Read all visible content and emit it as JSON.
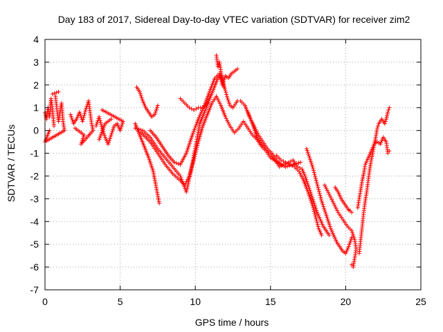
{
  "chart_data": {
    "type": "scatter",
    "title": "Day 183 of 2017, Sidereal Day-to-day VTEC variation (SDTVAR) for receiver zim2",
    "xlabel": "GPS time / hours",
    "ylabel": "SDTVAR / TECUs",
    "xlim": [
      0,
      25
    ],
    "ylim": [
      -7,
      4
    ],
    "x_ticks": [
      0,
      5,
      10,
      15,
      20,
      25
    ],
    "y_ticks": [
      -7,
      -6,
      -5,
      -4,
      -3,
      -2,
      -1,
      0,
      1,
      2,
      3,
      4
    ],
    "grid": true,
    "marker": "+",
    "color": "#ff0000",
    "series": [
      {
        "values": [
          [
            0.0,
            0.8
          ],
          [
            0.1,
            0.5
          ],
          [
            0.2,
            1.0
          ],
          [
            0.3,
            0.6
          ],
          [
            0.4,
            1.4
          ],
          [
            0.5,
            0.9
          ],
          [
            0.6,
            0.2
          ],
          [
            0.7,
            1.5
          ],
          [
            0.8,
            0.9
          ],
          [
            0.9,
            0.4
          ],
          [
            1.0,
            0.8
          ],
          [
            1.1,
            1.2
          ],
          [
            1.2,
            0.4
          ],
          [
            1.3,
            0.0
          ],
          [
            0.0,
            -0.5
          ],
          [
            0.3,
            0.0
          ],
          [
            0.5,
            1.6
          ],
          [
            0.9,
            1.7
          ]
        ]
      },
      {
        "values": [
          [
            1.7,
            0.7
          ],
          [
            1.9,
            0.3
          ],
          [
            2.1,
            0.5
          ],
          [
            2.3,
            0.8
          ],
          [
            2.5,
            0.4
          ],
          [
            2.7,
            0.9
          ],
          [
            2.9,
            1.3
          ],
          [
            3.0,
            0.8
          ],
          [
            3.1,
            0.3
          ],
          [
            3.2,
            0.0
          ],
          [
            2.4,
            -0.6
          ],
          [
            2.6,
            -0.2
          ],
          [
            2.0,
            0.1
          ]
        ]
      },
      {
        "values": [
          [
            3.4,
            0.2
          ],
          [
            3.6,
            0.6
          ],
          [
            3.8,
            0.1
          ],
          [
            4.0,
            -0.3
          ],
          [
            4.2,
            -0.6
          ],
          [
            4.4,
            -0.2
          ],
          [
            4.6,
            0.2
          ],
          [
            4.8,
            0.3
          ],
          [
            5.0,
            0.0
          ],
          [
            5.2,
            0.4
          ],
          [
            3.8,
            0.9
          ],
          [
            3.6,
            -0.4
          ],
          [
            4.0,
            0.3
          ],
          [
            4.4,
            0.5
          ]
        ]
      },
      {
        "values": [
          [
            6.1,
            1.9
          ],
          [
            6.3,
            1.7
          ],
          [
            6.5,
            1.3
          ],
          [
            6.7,
            1.0
          ],
          [
            6.9,
            0.8
          ],
          [
            7.1,
            0.6
          ],
          [
            7.3,
            0.7
          ],
          [
            7.5,
            1.1
          ]
        ]
      },
      {
        "values": [
          [
            6.0,
            0.3
          ],
          [
            6.3,
            -0.2
          ],
          [
            6.6,
            -0.7
          ],
          [
            6.9,
            -1.2
          ],
          [
            7.2,
            -1.8
          ],
          [
            7.4,
            -2.5
          ],
          [
            7.6,
            -3.2
          ]
        ]
      },
      {
        "values": [
          [
            6.0,
            0.1
          ],
          [
            6.5,
            0.0
          ],
          [
            7.0,
            -0.3
          ],
          [
            7.5,
            -0.8
          ],
          [
            8.0,
            -1.2
          ],
          [
            8.5,
            -1.6
          ],
          [
            9.0,
            -2.0
          ],
          [
            9.4,
            -2.7
          ],
          [
            9.5,
            -2.4
          ],
          [
            9.7,
            -1.8
          ],
          [
            9.9,
            -1.1
          ],
          [
            10.1,
            -0.4
          ],
          [
            10.3,
            0.3
          ],
          [
            10.6,
            0.8
          ],
          [
            10.9,
            1.3
          ],
          [
            11.2,
            1.8
          ],
          [
            11.5,
            2.3
          ],
          [
            11.7,
            2.4
          ],
          [
            11.9,
            2.0
          ],
          [
            12.1,
            1.5
          ],
          [
            12.3,
            1.1
          ],
          [
            12.5,
            1.0
          ],
          [
            12.8,
            1.3
          ],
          [
            13.0,
            1.3
          ],
          [
            13.3,
            1.1
          ],
          [
            13.6,
            0.6
          ],
          [
            13.9,
            0.2
          ],
          [
            14.2,
            -0.2
          ],
          [
            14.5,
            -0.5
          ],
          [
            14.8,
            -0.8
          ],
          [
            15.1,
            -1.0
          ],
          [
            15.4,
            -1.3
          ],
          [
            15.7,
            -1.5
          ]
        ]
      },
      {
        "values": [
          [
            6.4,
            -0.1
          ],
          [
            7.0,
            -0.5
          ],
          [
            7.5,
            -1.0
          ],
          [
            8.0,
            -1.5
          ],
          [
            8.5,
            -1.9
          ],
          [
            9.0,
            -2.2
          ],
          [
            9.3,
            -2.4
          ],
          [
            9.6,
            -2.0
          ],
          [
            9.9,
            -1.3
          ],
          [
            10.2,
            -0.5
          ],
          [
            10.5,
            0.2
          ],
          [
            10.8,
            0.7
          ],
          [
            11.1,
            1.2
          ],
          [
            11.4,
            1.5
          ],
          [
            11.7,
            1.1
          ],
          [
            12.0,
            0.6
          ],
          [
            12.3,
            0.2
          ],
          [
            12.6,
            -0.1
          ],
          [
            12.9,
            0.1
          ],
          [
            13.2,
            0.4
          ],
          [
            13.5,
            0.1
          ],
          [
            13.8,
            -0.2
          ],
          [
            14.1,
            -0.4
          ],
          [
            14.4,
            -0.7
          ],
          [
            14.7,
            -0.9
          ],
          [
            15.0,
            -1.2
          ],
          [
            15.5,
            -1.4
          ],
          [
            16.0,
            -1.6
          ],
          [
            16.5,
            -1.5
          ],
          [
            17.0,
            -1.4
          ]
        ]
      },
      {
        "values": [
          [
            7.0,
            0.0
          ],
          [
            7.4,
            -0.3
          ],
          [
            7.8,
            -0.7
          ],
          [
            8.2,
            -1.1
          ],
          [
            8.6,
            -1.4
          ],
          [
            9.0,
            -1.5
          ],
          [
            9.4,
            -1.0
          ],
          [
            9.8,
            -0.2
          ],
          [
            10.2,
            0.5
          ],
          [
            10.6,
            1.1
          ],
          [
            11.0,
            1.8
          ],
          [
            11.3,
            2.3
          ],
          [
            11.6,
            2.5
          ],
          [
            11.8,
            2.0
          ],
          [
            12.0,
            2.4
          ],
          [
            12.2,
            2.3
          ],
          [
            12.4,
            2.5
          ],
          [
            12.6,
            2.6
          ],
          [
            12.8,
            2.7
          ]
        ]
      },
      {
        "values": [
          [
            9.0,
            1.4
          ],
          [
            9.3,
            1.2
          ],
          [
            9.6,
            1.0
          ],
          [
            9.9,
            0.9
          ],
          [
            10.2,
            1.0
          ],
          [
            10.5,
            1.0
          ],
          [
            10.8,
            1.2
          ]
        ]
      },
      {
        "values": [
          [
            11.4,
            3.3
          ],
          [
            11.5,
            2.8
          ],
          [
            11.6,
            3.0
          ],
          [
            11.7,
            2.6
          ],
          [
            11.8,
            2.2
          ],
          [
            11.9,
            1.9
          ]
        ]
      },
      {
        "values": [
          [
            13.5,
            0.8
          ],
          [
            13.8,
            0.3
          ],
          [
            14.1,
            -0.3
          ],
          [
            14.4,
            -0.6
          ],
          [
            14.7,
            -0.8
          ],
          [
            15.0,
            -1.0
          ],
          [
            15.3,
            -1.3
          ],
          [
            15.6,
            -1.6
          ],
          [
            15.9,
            -1.5
          ],
          [
            16.2,
            -1.4
          ],
          [
            16.5,
            -1.3
          ],
          [
            16.8,
            -1.6
          ],
          [
            17.1,
            -1.7
          ],
          [
            17.3,
            -2.0
          ],
          [
            17.5,
            -2.4
          ],
          [
            17.7,
            -2.8
          ],
          [
            17.9,
            -3.2
          ],
          [
            18.1,
            -3.6
          ],
          [
            18.3,
            -3.9
          ],
          [
            18.5,
            -4.2
          ],
          [
            18.7,
            -4.4
          ],
          [
            18.9,
            -4.6
          ]
        ]
      },
      {
        "values": [
          [
            15.4,
            -1.1
          ],
          [
            15.7,
            -1.3
          ],
          [
            16.0,
            -1.4
          ],
          [
            16.3,
            -1.5
          ],
          [
            16.6,
            -1.6
          ],
          [
            16.9,
            -1.8
          ],
          [
            17.2,
            -2.2
          ],
          [
            17.5,
            -2.7
          ],
          [
            17.8,
            -3.3
          ],
          [
            18.0,
            -3.8
          ],
          [
            18.2,
            -4.3
          ],
          [
            18.4,
            -4.6
          ]
        ]
      },
      {
        "values": [
          [
            17.4,
            -0.8
          ],
          [
            17.6,
            -1.2
          ],
          [
            17.8,
            -1.6
          ],
          [
            18.0,
            -2.1
          ],
          [
            18.2,
            -2.6
          ],
          [
            18.4,
            -3.1
          ],
          [
            18.6,
            -3.5
          ],
          [
            18.8,
            -3.9
          ],
          [
            19.0,
            -4.3
          ],
          [
            19.2,
            -4.6
          ],
          [
            19.4,
            -4.9
          ],
          [
            19.6,
            -5.1
          ],
          [
            19.8,
            -5.3
          ],
          [
            20.0,
            -5.4
          ],
          [
            20.2,
            -5.1
          ],
          [
            20.4,
            -4.7
          ]
        ]
      },
      {
        "values": [
          [
            18.6,
            -2.4
          ],
          [
            18.9,
            -2.8
          ],
          [
            19.2,
            -3.2
          ],
          [
            19.5,
            -3.6
          ],
          [
            19.8,
            -3.9
          ],
          [
            20.1,
            -4.2
          ],
          [
            20.4,
            -4.4
          ],
          [
            20.6,
            -4.8
          ],
          [
            20.7,
            -5.2
          ],
          [
            20.5,
            -6.0
          ],
          [
            20.4,
            -5.9
          ],
          [
            20.2,
            -3.5
          ]
        ]
      },
      {
        "values": [
          [
            19.3,
            -2.5
          ],
          [
            19.5,
            -2.7
          ],
          [
            19.7,
            -3.0
          ],
          [
            19.9,
            -3.2
          ],
          [
            20.1,
            -3.4
          ],
          [
            20.4,
            -3.6
          ]
        ]
      },
      {
        "values": [
          [
            20.9,
            -5.4
          ],
          [
            21.0,
            -4.8
          ],
          [
            21.1,
            -4.2
          ],
          [
            21.2,
            -3.6
          ],
          [
            21.3,
            -3.1
          ],
          [
            21.4,
            -2.7
          ],
          [
            21.5,
            -2.2
          ],
          [
            21.6,
            -1.7
          ],
          [
            21.7,
            -1.3
          ],
          [
            21.8,
            -1.0
          ],
          [
            21.9,
            -0.6
          ],
          [
            22.0,
            -0.3
          ],
          [
            22.1,
            0.1
          ],
          [
            22.2,
            0.3
          ],
          [
            22.4,
            0.5
          ],
          [
            22.6,
            0.3
          ],
          [
            22.7,
            0.5
          ],
          [
            22.8,
            0.8
          ],
          [
            22.9,
            1.0
          ]
        ]
      },
      {
        "values": [
          [
            20.8,
            -3.4
          ],
          [
            20.9,
            -3.0
          ],
          [
            21.0,
            -2.6
          ],
          [
            21.1,
            -2.2
          ],
          [
            21.2,
            -1.9
          ],
          [
            21.3,
            -1.5
          ],
          [
            21.5,
            -1.2
          ],
          [
            21.7,
            -0.9
          ],
          [
            21.9,
            -0.6
          ],
          [
            22.1,
            -0.5
          ],
          [
            22.3,
            -0.6
          ],
          [
            22.5,
            -0.3
          ],
          [
            22.7,
            -0.5
          ],
          [
            22.8,
            -1.0
          ],
          [
            22.9,
            -0.9
          ]
        ]
      }
    ]
  }
}
